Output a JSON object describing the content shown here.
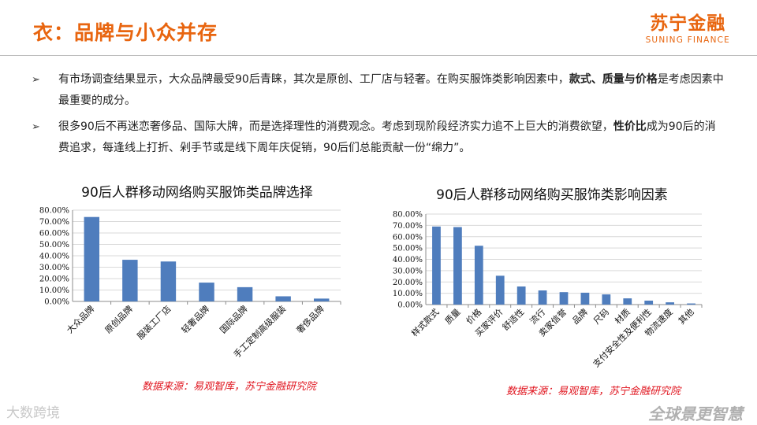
{
  "header": {
    "title": "衣：品牌与小众并存",
    "logo_cn": "苏宁金融",
    "logo_en": "SUNING FINANCE"
  },
  "bullets": [
    {
      "marker": "➢",
      "text_a": "有市场调查结果显示，大众品牌最受90后青睐，其次是原创、工厂店与轻奢。在购买服饰类影响因素中，",
      "bold_a": "款式、质量与价格",
      "text_b": "是考虑因素中最重要的成分。"
    },
    {
      "marker": "➢",
      "text_a": "很多90后不再迷恋奢侈品、国际大牌，而是选择理性的消费观念。考虑到现阶段经济实力追不上巨大的消费欲望，",
      "bold_a": "性价比",
      "text_b": "成为90后的消费追求，每逢线上打折、剁手节或是线下周年庆促销，90后们总能贡献一份“绵力”。"
    }
  ],
  "sources": {
    "left": "数据来源：易观智库，苏宁金融研究院",
    "right": "数据来源：易观智库，苏宁金融研究院"
  },
  "watermarks": {
    "left": "大数跨境",
    "right": "全球景更智慧"
  },
  "colors": {
    "accent": "#e8650f",
    "bar": "#4f7dbd",
    "source": "#e0141e"
  },
  "chart_data": [
    {
      "type": "bar",
      "title": "90后人群移动网络购买服饰类品牌选择",
      "categories": [
        "大众品牌",
        "原创品牌",
        "服装工厂店",
        "轻奢品牌",
        "国际品牌",
        "手工定制高级服装",
        "奢侈品牌"
      ],
      "values": [
        74.0,
        36.5,
        35.0,
        16.5,
        12.5,
        4.5,
        2.5
      ],
      "ylim": [
        0,
        80
      ],
      "yticks": [
        "0.00%",
        "10.00%",
        "20.00%",
        "30.00%",
        "40.00%",
        "50.00%",
        "60.00%",
        "70.00%",
        "80.00%"
      ],
      "grid": true,
      "xlabel": "",
      "ylabel": ""
    },
    {
      "type": "bar",
      "title": "90后人群移动网络购买服饰类影响因素",
      "categories": [
        "样式款式",
        "质量",
        "价格",
        "买家评价",
        "舒适性",
        "流行",
        "卖家信誉",
        "品牌",
        "尺码",
        "材质",
        "支付安全性及便利性",
        "物流速度",
        "其他"
      ],
      "values": [
        69.0,
        68.5,
        52.0,
        25.5,
        16.0,
        12.5,
        11.0,
        10.5,
        9.0,
        5.5,
        3.5,
        2.0,
        1.0
      ],
      "ylim": [
        0,
        80
      ],
      "yticks": [
        "0.00%",
        "10.00%",
        "20.00%",
        "30.00%",
        "40.00%",
        "50.00%",
        "60.00%",
        "70.00%",
        "80.00%"
      ],
      "grid": true,
      "xlabel": "",
      "ylabel": ""
    }
  ]
}
